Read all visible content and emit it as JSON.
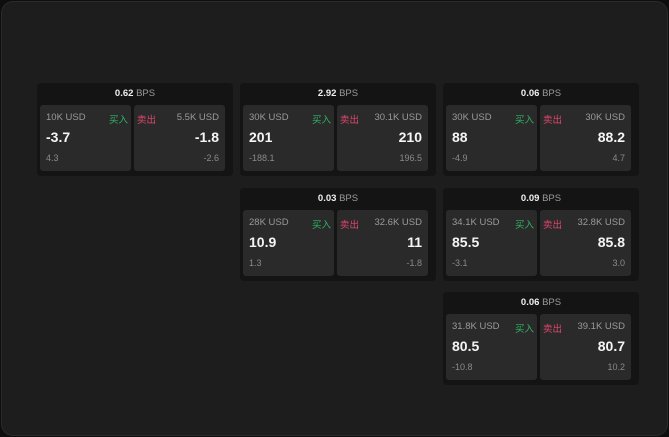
{
  "unit": "BPS",
  "buy_label": "买入",
  "sell_label": "卖出",
  "colors": {
    "buy": "#2fb565",
    "sell": "#e0466d"
  },
  "cards": [
    {
      "bps": "0.62",
      "buy": {
        "size": "10K USD",
        "price": "-3.7",
        "change": "4.3"
      },
      "sell": {
        "size": "5.5K USD",
        "price": "-1.8",
        "change": "-2.6"
      }
    },
    {
      "bps": "2.92",
      "buy": {
        "size": "30K USD",
        "price": "201",
        "change": "-188.1"
      },
      "sell": {
        "size": "30.1K USD",
        "price": "210",
        "change": "196.5"
      }
    },
    {
      "bps": "0.06",
      "buy": {
        "size": "30K USD",
        "price": "88",
        "change": "-4.9"
      },
      "sell": {
        "size": "30K USD",
        "price": "88.2",
        "change": "4.7"
      }
    },
    {
      "bps": "0.03",
      "buy": {
        "size": "28K USD",
        "price": "10.9",
        "change": "1.3"
      },
      "sell": {
        "size": "32.6K USD",
        "price": "11",
        "change": "-1.8"
      }
    },
    {
      "bps": "0.09",
      "buy": {
        "size": "34.1K USD",
        "price": "85.5",
        "change": "-3.1"
      },
      "sell": {
        "size": "32.8K USD",
        "price": "85.8",
        "change": "3.0"
      }
    },
    {
      "bps": "0.06",
      "buy": {
        "size": "31.8K USD",
        "price": "80.5",
        "change": "-10.8"
      },
      "sell": {
        "size": "39.1K USD",
        "price": "80.7",
        "change": "10.2"
      }
    }
  ]
}
